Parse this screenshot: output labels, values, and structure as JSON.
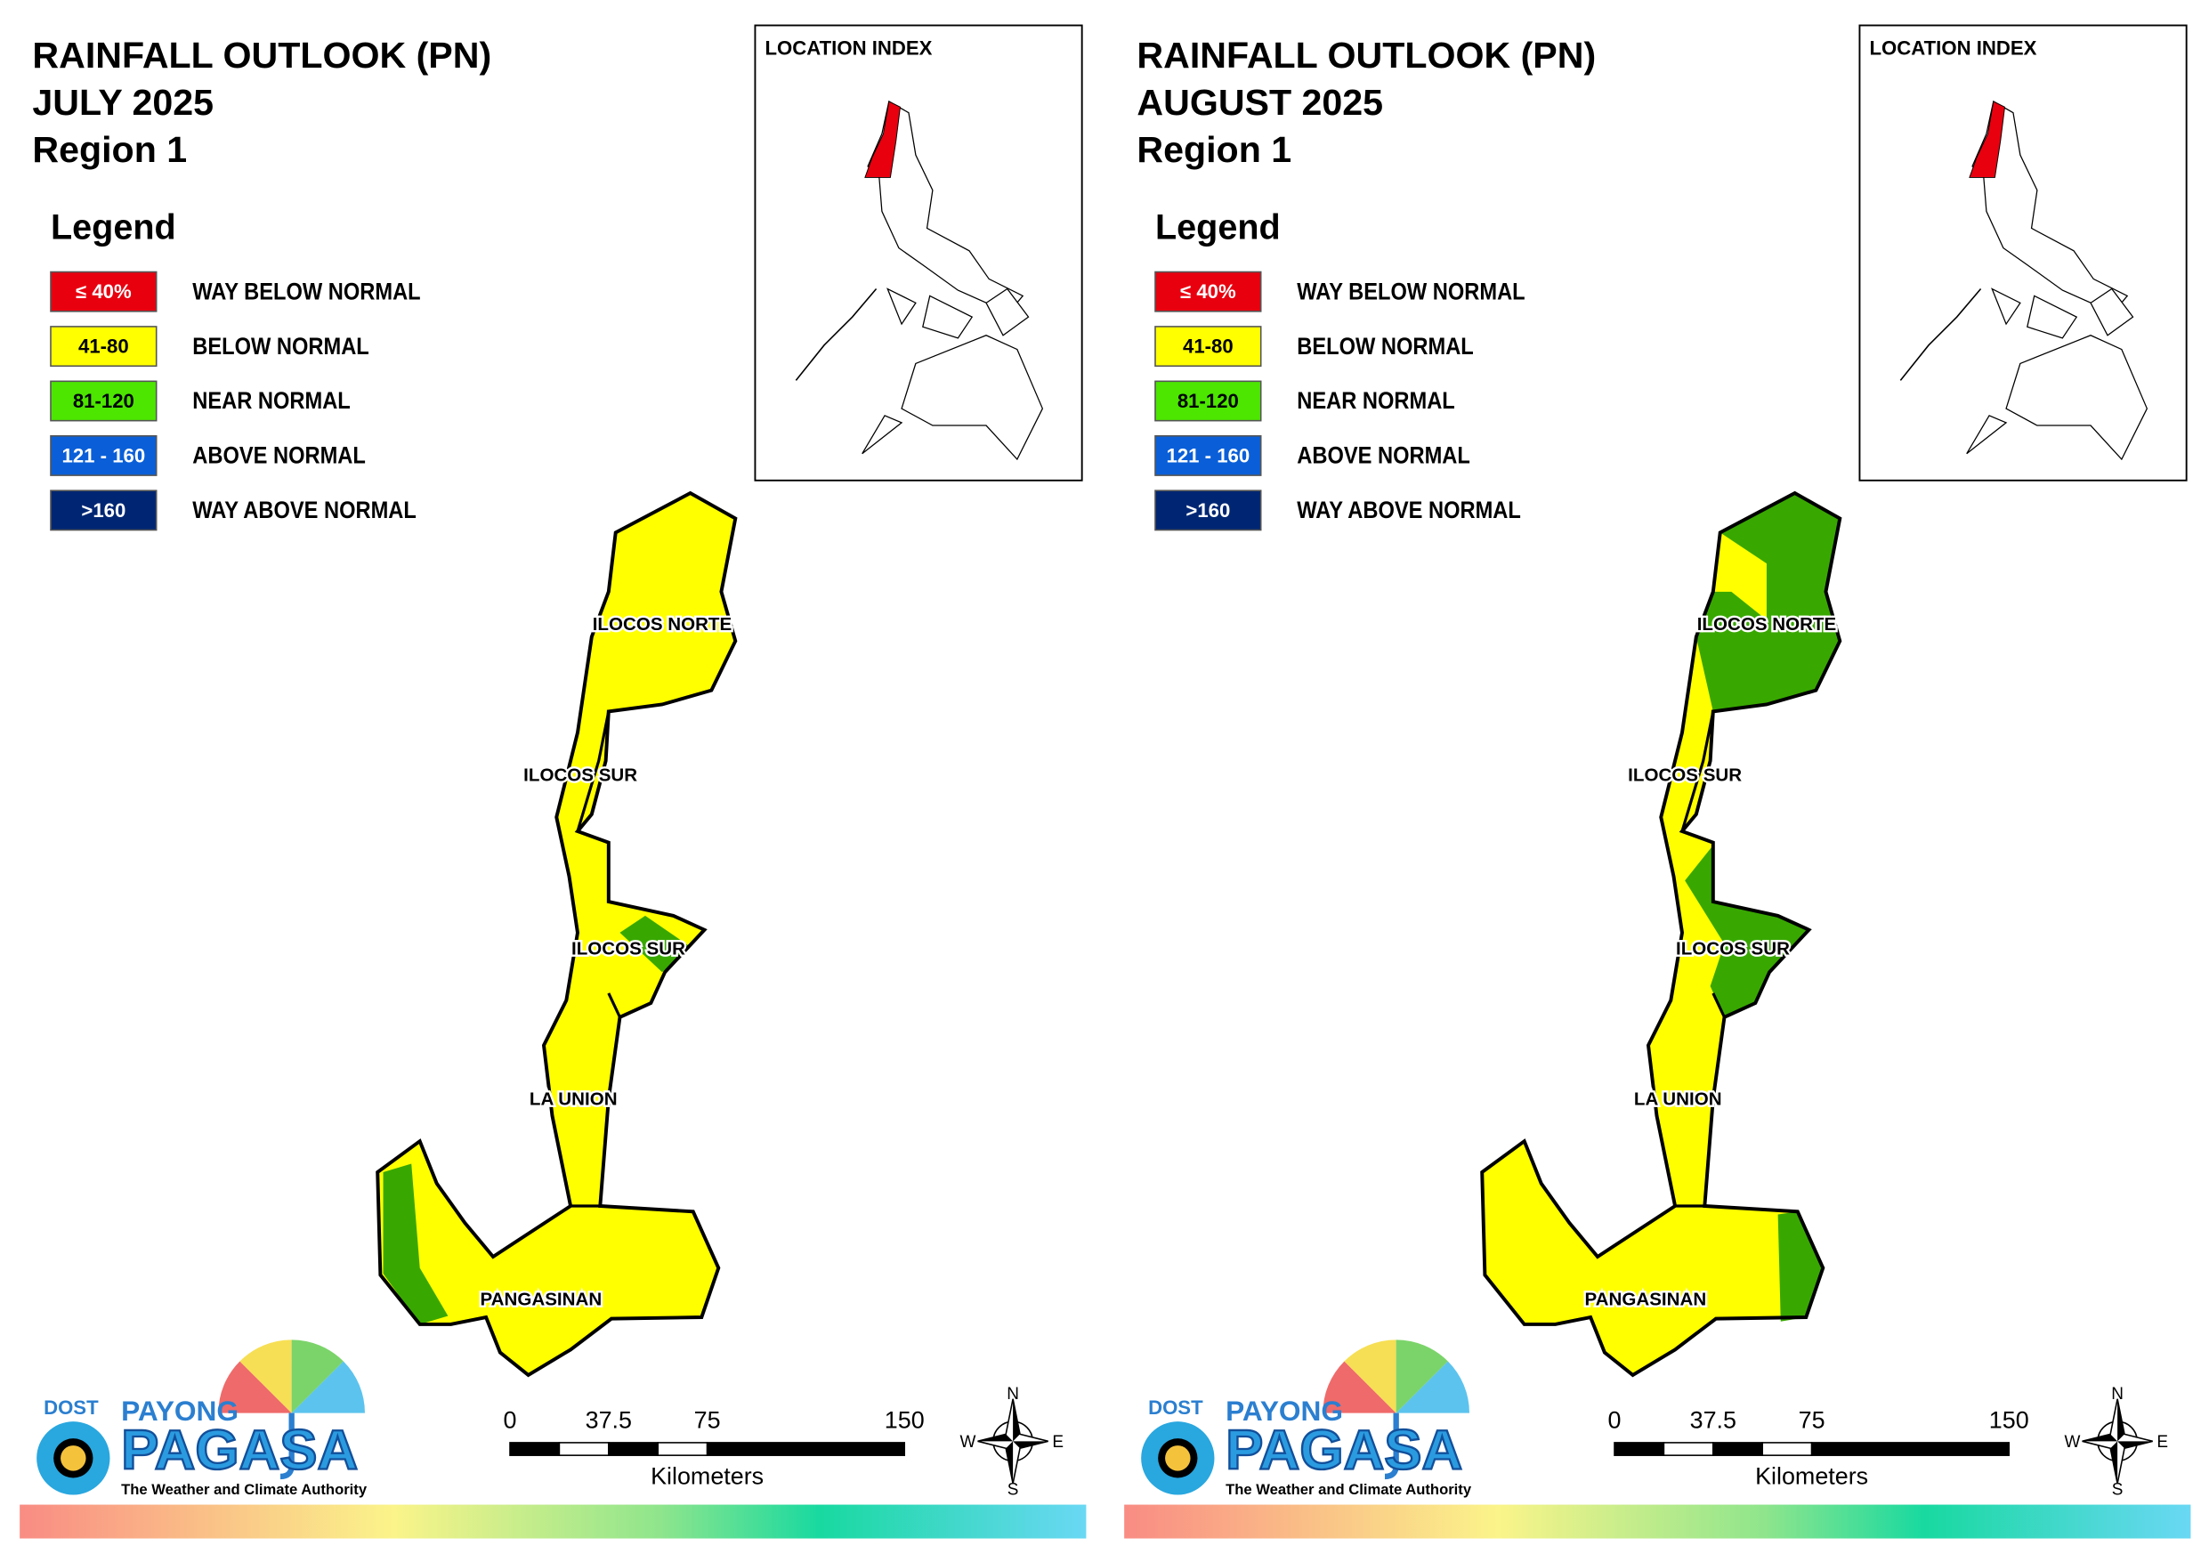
{
  "panels": [
    {
      "title": [
        "RAINFALL OUTLOOK (PN)",
        "JULY 2025",
        "Region 1"
      ],
      "legend_title": "Legend",
      "legend": [
        {
          "range": "≤ 40%",
          "label": "WAY BELOW NORMAL",
          "color": "#e8000f"
        },
        {
          "range": "41-80",
          "label": "BELOW NORMAL",
          "color": "#ffff00"
        },
        {
          "range": "81-120",
          "label": "NEAR NORMAL",
          "color": "#4ce600"
        },
        {
          "range": "121 - 160",
          "label": "ABOVE NORMAL",
          "color": "#0a5fd8"
        },
        {
          "range": ">160",
          "label": "WAY ABOVE NORMAL",
          "color": "#002673"
        }
      ],
      "location_index": "LOCATION INDEX",
      "provinces": [
        "ILOCOS NORTE",
        "ILOCOS SUR",
        "ILOCOS SUR",
        "LA UNION",
        "PANGASINAN"
      ],
      "scale": {
        "ticks": [
          0,
          37.5,
          75,
          150
        ],
        "unit": "Kilometers"
      },
      "compass": [
        "N",
        "E",
        "S",
        "W"
      ],
      "logo": {
        "agency": "DOST",
        "brand_top": "PAYONG",
        "brand": "PAGASA",
        "tagline": "The Weather and Climate Authority"
      }
    },
    {
      "title": [
        "RAINFALL OUTLOOK (PN)",
        "AUGUST 2025",
        "Region 1"
      ],
      "legend_title": "Legend",
      "legend": [
        {
          "range": "≤ 40%",
          "label": "WAY BELOW NORMAL",
          "color": "#e8000f"
        },
        {
          "range": "41-80",
          "label": "BELOW NORMAL",
          "color": "#ffff00"
        },
        {
          "range": "81-120",
          "label": "NEAR NORMAL",
          "color": "#4ce600"
        },
        {
          "range": "121 - 160",
          "label": "ABOVE NORMAL",
          "color": "#0a5fd8"
        },
        {
          "range": ">160",
          "label": "WAY ABOVE NORMAL",
          "color": "#002673"
        }
      ],
      "location_index": "LOCATION INDEX",
      "provinces": [
        "ILOCOS NORTE",
        "ILOCOS SUR",
        "ILOCOS SUR",
        "LA UNION",
        "PANGASINAN"
      ],
      "scale": {
        "ticks": [
          0,
          37.5,
          75,
          150
        ],
        "unit": "Kilometers"
      },
      "compass": [
        "N",
        "E",
        "S",
        "W"
      ],
      "logo": {
        "agency": "DOST",
        "brand_top": "PAYONG",
        "brand": "PAGASA",
        "tagline": "The Weather and Climate Authority"
      }
    }
  ]
}
